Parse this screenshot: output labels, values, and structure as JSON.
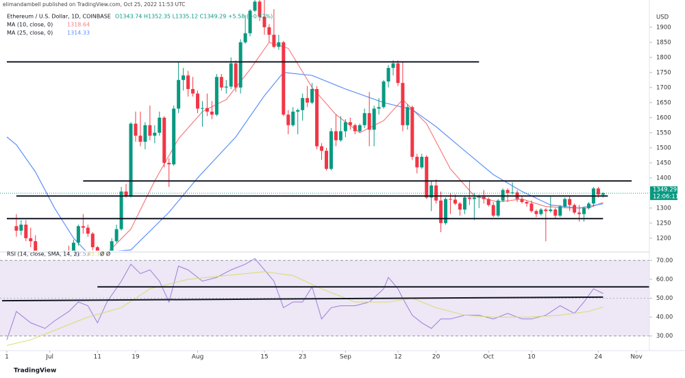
{
  "header": {
    "publisher": "elimandambell published on TradingView.com, Oct 25, 2022 11:53 UTC",
    "symbol": "Ethereum / U.S. Dollar, 1D, COINBASE",
    "ohlc": "O1343.74 H1352.35 L1335.12 C1349.29 +5.58 (+0.42%)"
  },
  "footer": "TradingView",
  "chart_data": [
    {
      "type": "candlestick",
      "currency": "USD",
      "up_color": "#089981",
      "down_color": "#f23645",
      "x": [
        "2022-06-24",
        "2022-06-25",
        "2022-06-26",
        "2022-06-27",
        "2022-06-28",
        "2022-06-29",
        "2022-06-30",
        "2022-07-01",
        "2022-07-02",
        "2022-07-03",
        "2022-07-04",
        "2022-07-05",
        "2022-07-06",
        "2022-07-07",
        "2022-07-08",
        "2022-07-09",
        "2022-07-10",
        "2022-07-11",
        "2022-07-12",
        "2022-07-13",
        "2022-07-14",
        "2022-07-15",
        "2022-07-16",
        "2022-07-17",
        "2022-07-18",
        "2022-07-19",
        "2022-07-20",
        "2022-07-21",
        "2022-07-22",
        "2022-07-23",
        "2022-07-24",
        "2022-07-25",
        "2022-07-26",
        "2022-07-27",
        "2022-07-28",
        "2022-07-29",
        "2022-07-30",
        "2022-07-31",
        "2022-08-01",
        "2022-08-02",
        "2022-08-03",
        "2022-08-04",
        "2022-08-05",
        "2022-08-06",
        "2022-08-07",
        "2022-08-08",
        "2022-08-09",
        "2022-08-10",
        "2022-08-11",
        "2022-08-12",
        "2022-08-13",
        "2022-08-14",
        "2022-08-15",
        "2022-08-16",
        "2022-08-17",
        "2022-08-18",
        "2022-08-19",
        "2022-08-20",
        "2022-08-21",
        "2022-08-22",
        "2022-08-23",
        "2022-08-24",
        "2022-08-25",
        "2022-08-26",
        "2022-08-27",
        "2022-08-28",
        "2022-08-29",
        "2022-08-30",
        "2022-08-31",
        "2022-09-01",
        "2022-09-02",
        "2022-09-03",
        "2022-09-04",
        "2022-09-05",
        "2022-09-06",
        "2022-09-07",
        "2022-09-08",
        "2022-09-09",
        "2022-09-10",
        "2022-09-11",
        "2022-09-12",
        "2022-09-13",
        "2022-09-14",
        "2022-09-15",
        "2022-09-16",
        "2022-09-17",
        "2022-09-18",
        "2022-09-19",
        "2022-09-20",
        "2022-09-21",
        "2022-09-22",
        "2022-09-23",
        "2022-09-24",
        "2022-09-25",
        "2022-09-26",
        "2022-09-27",
        "2022-09-28",
        "2022-09-29",
        "2022-09-30",
        "2022-10-01",
        "2022-10-02",
        "2022-10-03",
        "2022-10-04",
        "2022-10-05",
        "2022-10-06",
        "2022-10-07",
        "2022-10-08",
        "2022-10-09",
        "2022-10-10",
        "2022-10-11",
        "2022-10-12",
        "2022-10-13",
        "2022-10-14",
        "2022-10-15",
        "2022-10-16",
        "2022-10-17",
        "2022-10-18",
        "2022-10-19",
        "2022-10-20",
        "2022-10-21",
        "2022-10-22",
        "2022-10-23",
        "2022-10-24",
        "2022-10-25"
      ],
      "open": [
        1240,
        1225,
        1245,
        1200,
        1190,
        1140,
        1100,
        1070,
        1060,
        1070,
        1075,
        1150,
        1135,
        1185,
        1240,
        1235,
        1215,
        1170,
        1100,
        1040,
        1110,
        1190,
        1230,
        1355,
        1340,
        1580,
        1540,
        1520,
        1575,
        1540,
        1550,
        1600,
        1450,
        1445,
        1630,
        1725,
        1740,
        1695,
        1680,
        1630,
        1632,
        1620,
        1610,
        1735,
        1700,
        1703,
        1780,
        1700,
        1850,
        1880,
        1955,
        1985,
        1935,
        1900,
        1875,
        1835,
        1850,
        1610,
        1575,
        1620,
        1625,
        1665,
        1650,
        1695,
        1505,
        1490,
        1430,
        1555,
        1525,
        1555,
        1585,
        1575,
        1555,
        1575,
        1615,
        1560,
        1630,
        1635,
        1720,
        1765,
        1780,
        1715,
        1575,
        1635,
        1470,
        1435,
        1470,
        1335,
        1375,
        1325,
        1250,
        1330,
        1328,
        1315,
        1295,
        1335,
        1330,
        1335,
        1337,
        1330,
        1310,
        1275,
        1325,
        1360,
        1350,
        1352,
        1330,
        1320,
        1315,
        1290,
        1280,
        1295,
        1290,
        1295,
        1275,
        1305,
        1330,
        1310,
        1285,
        1280,
        1300,
        1315,
        1365,
        1343.74
      ],
      "high": [
        1280,
        1260,
        1260,
        1235,
        1210,
        1150,
        1115,
        1090,
        1080,
        1085,
        1160,
        1175,
        1195,
        1245,
        1280,
        1245,
        1220,
        1175,
        1105,
        1115,
        1200,
        1245,
        1370,
        1380,
        1585,
        1620,
        1620,
        1585,
        1640,
        1575,
        1620,
        1605,
        1465,
        1640,
        1785,
        1765,
        1755,
        1735,
        1690,
        1655,
        1680,
        1655,
        1745,
        1745,
        1725,
        1800,
        1790,
        1860,
        1940,
        1960,
        2015,
        2020,
        2010,
        1910,
        1960,
        1875,
        1855,
        1625,
        1635,
        1630,
        1680,
        1705,
        1715,
        1705,
        1515,
        1500,
        1565,
        1610,
        1605,
        1595,
        1600,
        1580,
        1580,
        1630,
        1685,
        1640,
        1665,
        1725,
        1775,
        1790,
        1790,
        1785,
        1645,
        1640,
        1480,
        1480,
        1475,
        1390,
        1395,
        1355,
        1335,
        1350,
        1345,
        1320,
        1340,
        1390,
        1350,
        1345,
        1360,
        1335,
        1320,
        1330,
        1365,
        1365,
        1385,
        1360,
        1340,
        1325,
        1325,
        1295,
        1300,
        1300,
        1340,
        1300,
        1310,
        1335,
        1340,
        1315,
        1310,
        1305,
        1320,
        1370,
        1370,
        1352.35
      ],
      "low": [
        1205,
        1210,
        1190,
        1170,
        1130,
        1085,
        1000,
        1035,
        1050,
        1055,
        1070,
        1100,
        1115,
        1175,
        1215,
        1205,
        1160,
        1090,
        1035,
        1005,
        1100,
        1185,
        1225,
        1335,
        1335,
        1520,
        1505,
        1495,
        1525,
        1515,
        1540,
        1435,
        1370,
        1440,
        1615,
        1690,
        1670,
        1670,
        1615,
        1570,
        1605,
        1595,
        1605,
        1690,
        1680,
        1695,
        1685,
        1680,
        1845,
        1870,
        1950,
        1920,
        1875,
        1850,
        1830,
        1825,
        1605,
        1545,
        1570,
        1545,
        1590,
        1635,
        1645,
        1495,
        1460,
        1425,
        1425,
        1505,
        1520,
        1535,
        1560,
        1545,
        1550,
        1565,
        1505,
        1505,
        1610,
        1630,
        1700,
        1740,
        1705,
        1555,
        1560,
        1460,
        1415,
        1430,
        1330,
        1290,
        1315,
        1220,
        1245,
        1280,
        1310,
        1275,
        1280,
        1310,
        1260,
        1300,
        1315,
        1305,
        1270,
        1270,
        1320,
        1320,
        1345,
        1320,
        1315,
        1305,
        1285,
        1270,
        1275,
        1190,
        1285,
        1265,
        1270,
        1300,
        1290,
        1280,
        1255,
        1255,
        1295,
        1305,
        1335,
        1335.12
      ],
      "close": [
        1225,
        1245,
        1200,
        1190,
        1140,
        1100,
        1070,
        1060,
        1070,
        1075,
        1150,
        1135,
        1185,
        1240,
        1235,
        1215,
        1170,
        1100,
        1040,
        1110,
        1190,
        1230,
        1355,
        1340,
        1580,
        1540,
        1520,
        1575,
        1540,
        1550,
        1600,
        1450,
        1445,
        1630,
        1725,
        1740,
        1695,
        1680,
        1630,
        1632,
        1620,
        1610,
        1735,
        1700,
        1703,
        1780,
        1700,
        1850,
        1880,
        1955,
        1985,
        1935,
        1900,
        1875,
        1835,
        1850,
        1610,
        1575,
        1620,
        1625,
        1665,
        1650,
        1695,
        1505,
        1490,
        1430,
        1555,
        1525,
        1555,
        1585,
        1575,
        1555,
        1575,
        1615,
        1560,
        1630,
        1635,
        1720,
        1765,
        1780,
        1715,
        1575,
        1635,
        1470,
        1435,
        1470,
        1335,
        1375,
        1325,
        1250,
        1330,
        1328,
        1315,
        1295,
        1335,
        1330,
        1335,
        1337,
        1330,
        1310,
        1275,
        1325,
        1360,
        1350,
        1352,
        1330,
        1320,
        1315,
        1290,
        1280,
        1295,
        1290,
        1295,
        1275,
        1305,
        1330,
        1310,
        1285,
        1280,
        1300,
        1315,
        1365,
        1345,
        1349.29
      ],
      "xlim": [
        "2022-06-21",
        "2022-11-04"
      ],
      "xticks": [
        {
          "value": "2022-06-22",
          "label": "1"
        },
        {
          "value": "2022-07-01",
          "label": "Jul"
        },
        {
          "value": "2022-07-11",
          "label": "11"
        },
        {
          "value": "2022-07-19",
          "label": "19"
        },
        {
          "value": "2022-08-01",
          "label": "Aug"
        },
        {
          "value": "2022-08-15",
          "label": "15"
        },
        {
          "value": "2022-08-23",
          "label": "23"
        },
        {
          "value": "2022-09-01",
          "label": "Sep"
        },
        {
          "value": "2022-09-12",
          "label": "12"
        },
        {
          "value": "2022-09-20",
          "label": "20"
        },
        {
          "value": "2022-10-01",
          "label": "Oct"
        },
        {
          "value": "2022-10-10",
          "label": "10"
        },
        {
          "value": "2022-10-24",
          "label": "24"
        },
        {
          "value": "2022-11-01",
          "label": "Nov"
        }
      ],
      "ylim": [
        1161,
        1954
      ],
      "yticks": [
        1200,
        1250,
        1300,
        1350,
        1400,
        1450,
        1500,
        1550,
        1600,
        1650,
        1700,
        1750,
        1800,
        1850,
        1900
      ],
      "series": [
        {
          "name": "MA (10, close, 0)",
          "color": "#f77c80",
          "x": [
            "2022-07-08",
            "2022-07-13",
            "2022-07-18",
            "2022-07-23",
            "2022-07-28",
            "2022-08-02",
            "2022-08-07",
            "2022-08-12",
            "2022-08-16",
            "2022-08-20",
            "2022-08-25",
            "2022-08-30",
            "2022-09-04",
            "2022-09-09",
            "2022-09-13",
            "2022-09-18",
            "2022-09-23",
            "2022-09-28",
            "2022-10-03",
            "2022-10-08",
            "2022-10-13",
            "2022-10-18",
            "2022-10-22",
            "2022-10-25"
          ],
          "values": [
            1150,
            1150,
            1230,
            1390,
            1530,
            1620,
            1660,
            1760,
            1850,
            1830,
            1700,
            1610,
            1550,
            1590,
            1660,
            1580,
            1430,
            1340,
            1320,
            1330,
            1305,
            1300,
            1300,
            1318.64
          ]
        },
        {
          "name": "MA (25, close, 0)",
          "color": "#5b8ff9",
          "x": [
            "2022-06-22",
            "2022-06-24",
            "2022-06-28",
            "2022-07-02",
            "2022-07-06",
            "2022-07-09",
            "2022-07-18",
            "2022-07-26",
            "2022-08-01",
            "2022-08-09",
            "2022-08-15",
            "2022-08-19",
            "2022-08-25",
            "2022-09-01",
            "2022-09-09",
            "2022-09-15",
            "2022-09-20",
            "2022-09-26",
            "2022-10-02",
            "2022-10-08",
            "2022-10-14",
            "2022-10-20",
            "2022-10-25"
          ],
          "values": [
            1536,
            1510,
            1420,
            1300,
            1200,
            1150,
            1161,
            1286,
            1400,
            1536,
            1673,
            1750,
            1740,
            1695,
            1650,
            1627,
            1570,
            1490,
            1411,
            1355,
            1310,
            1300,
            1314.33
          ]
        }
      ],
      "levels": [
        {
          "x": [
            "2022-06-22",
            "2022-09-29"
          ],
          "values": [
            1785,
            1785
          ]
        },
        {
          "x": [
            "2022-07-08",
            "2022-10-31"
          ],
          "values": [
            1390,
            1390
          ]
        },
        {
          "x": [
            "2022-06-24",
            "2022-10-26"
          ],
          "values": [
            1340,
            1340
          ]
        },
        {
          "x": [
            "2022-06-22",
            "2022-10-25"
          ],
          "values": [
            1265,
            1265
          ]
        }
      ],
      "countdown": "12:06:11"
    },
    {
      "type": "line",
      "title": "RSI (14, close, SMA, 14, 2)",
      "legend_extra": "Ø Ø",
      "band_color": "#ede7f6",
      "band": [
        30,
        70
      ],
      "midline": 50,
      "xlim": [
        "2022-06-21",
        "2022-11-04"
      ],
      "ylim": [
        23,
        73
      ],
      "yticks": [
        {
          "value": 30,
          "label": "30.00"
        },
        {
          "value": 40,
          "label": "40.00"
        },
        {
          "value": 50,
          "label": "50.00"
        },
        {
          "value": 60,
          "label": "60.00"
        },
        {
          "value": 70,
          "label": "70.00"
        }
      ],
      "series": [
        {
          "color": "#9c7ed8",
          "x": [
            "2022-06-22",
            "2022-06-24",
            "2022-06-27",
            "2022-06-30",
            "2022-07-02",
            "2022-07-05",
            "2022-07-07",
            "2022-07-09",
            "2022-07-11",
            "2022-07-13",
            "2022-07-16",
            "2022-07-18",
            "2022-07-20",
            "2022-07-22",
            "2022-07-24",
            "2022-07-26",
            "2022-07-28",
            "2022-07-30",
            "2022-08-02",
            "2022-08-05",
            "2022-08-08",
            "2022-08-11",
            "2022-08-13",
            "2022-08-15",
            "2022-08-17",
            "2022-08-19",
            "2022-08-21",
            "2022-08-23",
            "2022-08-25",
            "2022-08-27",
            "2022-08-29",
            "2022-08-31",
            "2022-09-03",
            "2022-09-06",
            "2022-09-09",
            "2022-09-10",
            "2022-09-12",
            "2022-09-13",
            "2022-09-15",
            "2022-09-17",
            "2022-09-19",
            "2022-09-21",
            "2022-09-23",
            "2022-09-26",
            "2022-09-29",
            "2022-10-02",
            "2022-10-05",
            "2022-10-08",
            "2022-10-10",
            "2022-10-13",
            "2022-10-16",
            "2022-10-19",
            "2022-10-21",
            "2022-10-23",
            "2022-10-25"
          ],
          "values": [
            28,
            43,
            37,
            34,
            38,
            43,
            48,
            46,
            37,
            48,
            59,
            68,
            63,
            65,
            59,
            48,
            67,
            65,
            59,
            61,
            65,
            68,
            71,
            65,
            59,
            45,
            48,
            48,
            56,
            39,
            45,
            46,
            46,
            48,
            55,
            61,
            55,
            50,
            41,
            37,
            34,
            39,
            39,
            41,
            41,
            39,
            42,
            39,
            39,
            41,
            46,
            42,
            48,
            55,
            52.53
          ]
        },
        {
          "color": "#d8dc6a",
          "x": [
            "2022-06-22",
            "2022-06-27",
            "2022-07-02",
            "2022-07-09",
            "2022-07-16",
            "2022-07-22",
            "2022-07-30",
            "2022-08-07",
            "2022-08-15",
            "2022-08-21",
            "2022-08-27",
            "2022-09-03",
            "2022-09-10",
            "2022-09-15",
            "2022-09-20",
            "2022-09-26",
            "2022-10-02",
            "2022-10-09",
            "2022-10-16",
            "2022-10-22",
            "2022-10-25"
          ],
          "values": [
            25,
            28,
            33,
            40,
            45,
            55,
            60,
            62,
            64,
            62,
            55,
            48,
            48,
            50,
            45,
            41,
            40,
            40,
            41,
            43,
            45.33
          ]
        }
      ],
      "levels": [
        {
          "x": [
            "2022-07-11",
            "2022-11-04"
          ],
          "values": [
            56,
            56
          ]
        },
        {
          "x": [
            "2022-06-21",
            "2022-10-25"
          ],
          "values": [
            48.7,
            50.6
          ]
        }
      ]
    }
  ]
}
